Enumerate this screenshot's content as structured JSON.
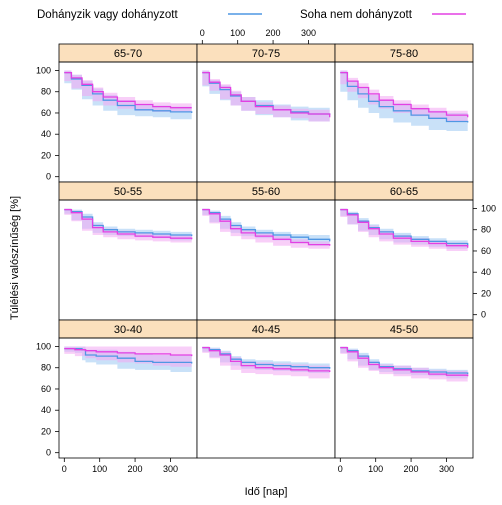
{
  "chart_data": {
    "type": "line",
    "layout": {
      "rows": 3,
      "cols": 3
    },
    "xlabel": "Idő [nap]",
    "ylabel": "Túlélési valószínűség [%]",
    "xlim": [
      -15,
      375
    ],
    "ylim": [
      -5,
      108
    ],
    "x_ticks": [
      0,
      100,
      200,
      300
    ],
    "y_ticks": [
      0,
      20,
      40,
      60,
      80,
      100
    ],
    "grid": false,
    "legend": {
      "position": "top",
      "entries": [
        {
          "label": "Dohányzik vagy dohányzott",
          "color": "#4f97e3"
        },
        {
          "label": "Soha nem dohányzott",
          "color": "#e340e3"
        }
      ]
    },
    "series_colors": {
      "smoker": "#4f97e3",
      "never": "#e340e3"
    },
    "band_colors": {
      "smoker": "#9cc8f2",
      "never": "#f2a8f2"
    },
    "strip_color": "#fbe0bd",
    "panels": [
      {
        "label": "65-70",
        "row": 0,
        "col": 0,
        "smoker": {
          "x": [
            0,
            20,
            50,
            80,
            110,
            150,
            200,
            250,
            300,
            360
          ],
          "y": [
            98,
            92,
            86,
            78,
            72,
            67,
            63,
            62,
            61,
            60
          ],
          "band": [
            4,
            4,
            4,
            5,
            5,
            5,
            5,
            5,
            5,
            6
          ]
        },
        "never": {
          "x": [
            0,
            20,
            50,
            80,
            110,
            150,
            200,
            250,
            300,
            360
          ],
          "y": [
            98,
            93,
            87,
            80,
            75,
            71,
            68,
            66,
            65,
            65
          ],
          "band": [
            3,
            3,
            4,
            4,
            4,
            4,
            4,
            4,
            4,
            4
          ]
        }
      },
      {
        "label": "70-75",
        "row": 0,
        "col": 1,
        "smoker": {
          "x": [
            0,
            20,
            50,
            80,
            110,
            150,
            200,
            250,
            300,
            360
          ],
          "y": [
            98,
            88,
            82,
            76,
            71,
            67,
            63,
            61,
            59,
            58
          ],
          "band": [
            3,
            3,
            4,
            4,
            4,
            5,
            5,
            5,
            6,
            6
          ]
        },
        "never": {
          "x": [
            0,
            20,
            50,
            80,
            110,
            150,
            200,
            250,
            300,
            360
          ],
          "y": [
            98,
            89,
            84,
            77,
            71,
            66,
            63,
            60,
            59,
            56
          ],
          "band": [
            3,
            3,
            3,
            4,
            4,
            4,
            4,
            4,
            4,
            4
          ]
        }
      },
      {
        "label": "75-80",
        "row": 0,
        "col": 2,
        "smoker": {
          "x": [
            0,
            20,
            50,
            80,
            110,
            150,
            200,
            250,
            300,
            360
          ],
          "y": [
            98,
            85,
            78,
            71,
            66,
            62,
            58,
            55,
            52,
            51
          ],
          "band": [
            3,
            5,
            6,
            6,
            6,
            7,
            7,
            7,
            8,
            8
          ]
        },
        "never": {
          "x": [
            0,
            20,
            50,
            80,
            110,
            150,
            200,
            250,
            300,
            360
          ],
          "y": [
            98,
            90,
            84,
            78,
            72,
            68,
            64,
            61,
            58,
            56
          ],
          "band": [
            3,
            3,
            4,
            4,
            4,
            4,
            4,
            4,
            4,
            4
          ]
        }
      },
      {
        "label": "50-55",
        "row": 1,
        "col": 0,
        "smoker": {
          "x": [
            0,
            20,
            50,
            80,
            110,
            150,
            200,
            250,
            300,
            360
          ],
          "y": [
            99,
            97,
            92,
            84,
            80,
            78,
            77,
            76,
            75,
            74
          ],
          "band": [
            1,
            2,
            3,
            3,
            3,
            3,
            3,
            3,
            3,
            4
          ]
        },
        "never": {
          "x": [
            0,
            20,
            50,
            80,
            110,
            150,
            200,
            250,
            300,
            360
          ],
          "y": [
            99,
            96,
            90,
            82,
            78,
            76,
            74,
            73,
            72,
            71
          ],
          "band": [
            1,
            2,
            2,
            3,
            3,
            3,
            3,
            3,
            3,
            3
          ]
        }
      },
      {
        "label": "55-60",
        "row": 1,
        "col": 1,
        "smoker": {
          "x": [
            0,
            20,
            50,
            80,
            110,
            150,
            200,
            250,
            300,
            360
          ],
          "y": [
            99,
            96,
            90,
            84,
            80,
            77,
            75,
            73,
            71,
            69
          ],
          "band": [
            1,
            2,
            3,
            3,
            3,
            3,
            3,
            3,
            4,
            4
          ]
        },
        "never": {
          "x": [
            0,
            20,
            50,
            80,
            110,
            150,
            200,
            250,
            300,
            360
          ],
          "y": [
            99,
            95,
            88,
            81,
            77,
            74,
            71,
            68,
            66,
            65
          ],
          "band": [
            1,
            2,
            2,
            3,
            3,
            3,
            3,
            3,
            3,
            3
          ]
        }
      },
      {
        "label": "60-65",
        "row": 1,
        "col": 2,
        "smoker": {
          "x": [
            0,
            20,
            50,
            80,
            110,
            150,
            200,
            250,
            300,
            360
          ],
          "y": [
            99,
            95,
            88,
            82,
            78,
            74,
            71,
            69,
            67,
            65
          ],
          "band": [
            1,
            2,
            3,
            3,
            3,
            3,
            3,
            3,
            3,
            3
          ]
        },
        "never": {
          "x": [
            0,
            20,
            50,
            80,
            110,
            150,
            200,
            250,
            300,
            360
          ],
          "y": [
            99,
            94,
            87,
            81,
            76,
            72,
            69,
            67,
            65,
            63
          ],
          "band": [
            1,
            2,
            2,
            3,
            3,
            3,
            3,
            3,
            3,
            3
          ]
        }
      },
      {
        "label": "30-40",
        "row": 2,
        "col": 0,
        "smoker": {
          "x": [
            0,
            30,
            50,
            60,
            90,
            150,
            200,
            250,
            300,
            360
          ],
          "y": [
            98,
            98,
            97,
            92,
            91,
            89,
            86,
            85,
            85,
            84
          ],
          "band": [
            2,
            3,
            3,
            5,
            6,
            6,
            7,
            7,
            7,
            8
          ]
        },
        "never": {
          "x": [
            0,
            30,
            60,
            90,
            150,
            200,
            250,
            300,
            360
          ],
          "y": [
            98,
            97,
            96,
            95,
            94,
            93,
            93,
            92,
            91
          ],
          "band": [
            3,
            4,
            5,
            6,
            7,
            8,
            9,
            10,
            10
          ]
        }
      },
      {
        "label": "40-45",
        "row": 2,
        "col": 1,
        "smoker": {
          "x": [
            0,
            20,
            50,
            80,
            110,
            150,
            200,
            250,
            300,
            360
          ],
          "y": [
            99,
            97,
            93,
            88,
            85,
            83,
            82,
            81,
            80,
            79
          ],
          "band": [
            1,
            2,
            3,
            3,
            3,
            4,
            4,
            4,
            4,
            4
          ]
        },
        "never": {
          "x": [
            0,
            20,
            50,
            80,
            110,
            150,
            200,
            250,
            300,
            360
          ],
          "y": [
            99,
            96,
            92,
            86,
            82,
            80,
            79,
            78,
            77,
            76
          ],
          "band": [
            1,
            2,
            3,
            4,
            4,
            5,
            5,
            5,
            5,
            6
          ]
        }
      },
      {
        "label": "45-50",
        "row": 2,
        "col": 2,
        "smoker": {
          "x": [
            0,
            20,
            50,
            80,
            110,
            150,
            200,
            250,
            300,
            360
          ],
          "y": [
            99,
            96,
            91,
            85,
            81,
            79,
            77,
            76,
            75,
            74
          ],
          "band": [
            1,
            2,
            3,
            3,
            3,
            3,
            3,
            3,
            3,
            4
          ]
        },
        "never": {
          "x": [
            0,
            20,
            50,
            80,
            110,
            150,
            200,
            250,
            300,
            360
          ],
          "y": [
            99,
            95,
            89,
            83,
            80,
            78,
            76,
            74,
            73,
            72
          ],
          "band": [
            1,
            2,
            3,
            3,
            3,
            4,
            4,
            4,
            4,
            5
          ]
        }
      }
    ]
  }
}
